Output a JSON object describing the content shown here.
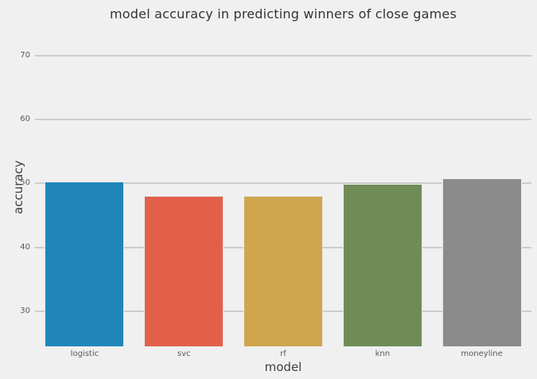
{
  "figure": {
    "background": "#f0f0f0",
    "gridline_color": "#cccccc",
    "text_colors": {
      "title": "#333333",
      "axis_label": "#404040",
      "tick_label": "#595959"
    }
  },
  "chart_data": {
    "type": "bar",
    "title": "model accuracy in predicting winners of close games",
    "xlabel": "model",
    "ylabel": "accuracy",
    "categories": [
      "logistic",
      "svc",
      "rf",
      "knn",
      "moneyline"
    ],
    "values": [
      50.3,
      48.1,
      48.1,
      49.9,
      50.8
    ],
    "bar_colors": [
      "#2086b9",
      "#e2604a",
      "#cfa64e",
      "#6f8c56",
      "#8b8b8b"
    ],
    "yticks": [
      30,
      40,
      50,
      60,
      70
    ],
    "ylim": [
      24.5,
      74.5
    ],
    "grid": true,
    "legend": "none"
  }
}
